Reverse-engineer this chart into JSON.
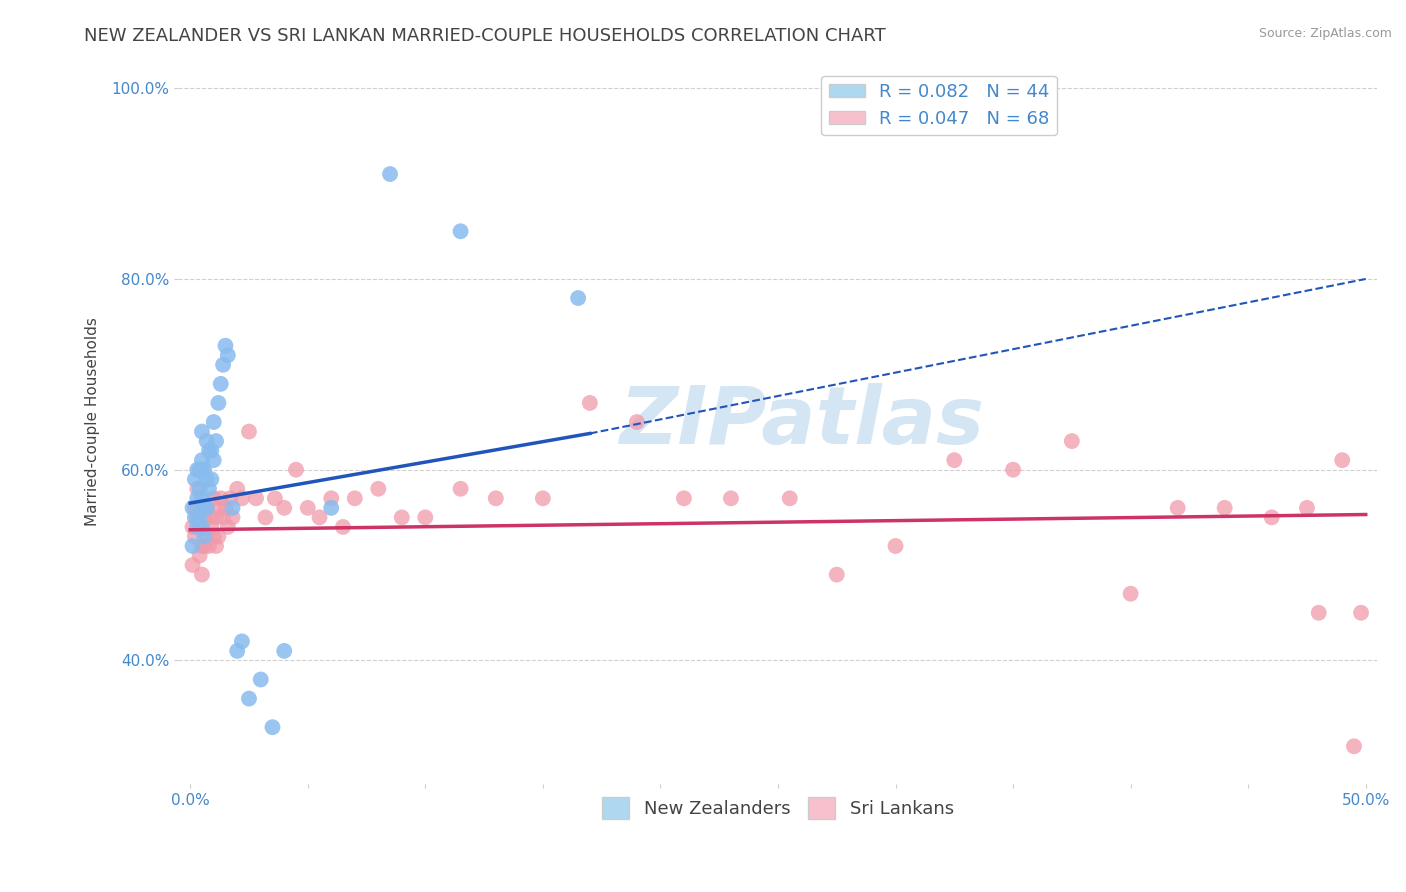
{
  "title": "NEW ZEALANDER VS SRI LANKAN MARRIED-COUPLE HOUSEHOLDS CORRELATION CHART",
  "source_text": "Source: ZipAtlas.com",
  "ylabel": "Married-couple Households",
  "xlim": [
    -0.005,
    0.505
  ],
  "ylim": [
    0.27,
    1.03
  ],
  "xtick_labels": [
    "0.0%",
    "",
    "",
    "",
    "",
    "",
    "",
    "",
    "",
    "",
    "50.0%"
  ],
  "xtick_values": [
    0.0,
    0.05,
    0.1,
    0.15,
    0.2,
    0.25,
    0.3,
    0.35,
    0.4,
    0.45,
    0.5
  ],
  "xtick_show": [
    0.0,
    0.5
  ],
  "xtick_show_labels": [
    "0.0%",
    "50.0%"
  ],
  "ytick_labels": [
    "40.0%",
    "60.0%",
    "80.0%",
    "100.0%"
  ],
  "ytick_values": [
    0.4,
    0.6,
    0.8,
    1.0
  ],
  "grid_color": "#d0d0d0",
  "background_color": "#ffffff",
  "title_color": "#444444",
  "title_fontsize": 13,
  "watermark": "ZIPatlas",
  "watermark_color": "#b8d4ee",
  "watermark_fontsize": 58,
  "blue_R": 0.082,
  "blue_N": 44,
  "pink_R": 0.047,
  "pink_N": 68,
  "blue_color": "#88bbee",
  "blue_color_legend": "#add8f0",
  "pink_color": "#f09aaa",
  "pink_color_legend": "#f8c0cc",
  "blue_line_color": "#2255bb",
  "pink_line_color": "#cc3366",
  "legend_fontsize": 13,
  "axis_label_color": "#4488cc",
  "axis_fontsize": 11,
  "blue_line_x0": 0.0,
  "blue_line_y0": 0.565,
  "blue_line_solid_x1": 0.17,
  "blue_line_solid_y1": 0.638,
  "blue_line_dash_x1": 0.5,
  "blue_line_dash_y1": 0.8,
  "pink_line_x0": 0.0,
  "pink_line_y0": 0.537,
  "pink_line_x1": 0.5,
  "pink_line_y1": 0.553,
  "blue_scatter_x": [
    0.001,
    0.001,
    0.002,
    0.002,
    0.003,
    0.003,
    0.003,
    0.004,
    0.004,
    0.004,
    0.005,
    0.005,
    0.005,
    0.005,
    0.005,
    0.006,
    0.006,
    0.006,
    0.007,
    0.007,
    0.007,
    0.008,
    0.008,
    0.009,
    0.009,
    0.01,
    0.01,
    0.011,
    0.012,
    0.013,
    0.014,
    0.015,
    0.016,
    0.018,
    0.02,
    0.022,
    0.025,
    0.03,
    0.035,
    0.04,
    0.06,
    0.085,
    0.115,
    0.165
  ],
  "blue_scatter_y": [
    0.56,
    0.52,
    0.59,
    0.55,
    0.6,
    0.57,
    0.54,
    0.6,
    0.58,
    0.55,
    0.6,
    0.57,
    0.54,
    0.64,
    0.61,
    0.6,
    0.56,
    0.53,
    0.63,
    0.59,
    0.56,
    0.62,
    0.58,
    0.62,
    0.59,
    0.65,
    0.61,
    0.63,
    0.67,
    0.69,
    0.71,
    0.73,
    0.72,
    0.56,
    0.41,
    0.42,
    0.36,
    0.38,
    0.33,
    0.41,
    0.56,
    0.91,
    0.85,
    0.78
  ],
  "pink_scatter_x": [
    0.001,
    0.001,
    0.002,
    0.002,
    0.003,
    0.003,
    0.004,
    0.004,
    0.005,
    0.005,
    0.005,
    0.006,
    0.006,
    0.007,
    0.007,
    0.008,
    0.008,
    0.009,
    0.01,
    0.01,
    0.011,
    0.011,
    0.012,
    0.012,
    0.013,
    0.014,
    0.015,
    0.016,
    0.017,
    0.018,
    0.02,
    0.022,
    0.025,
    0.028,
    0.032,
    0.036,
    0.04,
    0.045,
    0.05,
    0.055,
    0.06,
    0.065,
    0.07,
    0.08,
    0.09,
    0.1,
    0.115,
    0.13,
    0.15,
    0.17,
    0.19,
    0.21,
    0.23,
    0.255,
    0.275,
    0.3,
    0.325,
    0.35,
    0.375,
    0.4,
    0.42,
    0.44,
    0.46,
    0.475,
    0.48,
    0.49,
    0.495,
    0.498
  ],
  "pink_scatter_y": [
    0.54,
    0.5,
    0.56,
    0.53,
    0.58,
    0.55,
    0.54,
    0.51,
    0.56,
    0.52,
    0.49,
    0.55,
    0.52,
    0.56,
    0.53,
    0.55,
    0.52,
    0.54,
    0.57,
    0.53,
    0.55,
    0.52,
    0.56,
    0.53,
    0.57,
    0.55,
    0.56,
    0.54,
    0.57,
    0.55,
    0.58,
    0.57,
    0.64,
    0.57,
    0.55,
    0.57,
    0.56,
    0.6,
    0.56,
    0.55,
    0.57,
    0.54,
    0.57,
    0.58,
    0.55,
    0.55,
    0.58,
    0.57,
    0.57,
    0.67,
    0.65,
    0.57,
    0.57,
    0.57,
    0.49,
    0.52,
    0.61,
    0.6,
    0.63,
    0.47,
    0.56,
    0.56,
    0.55,
    0.56,
    0.45,
    0.61,
    0.31,
    0.45
  ]
}
